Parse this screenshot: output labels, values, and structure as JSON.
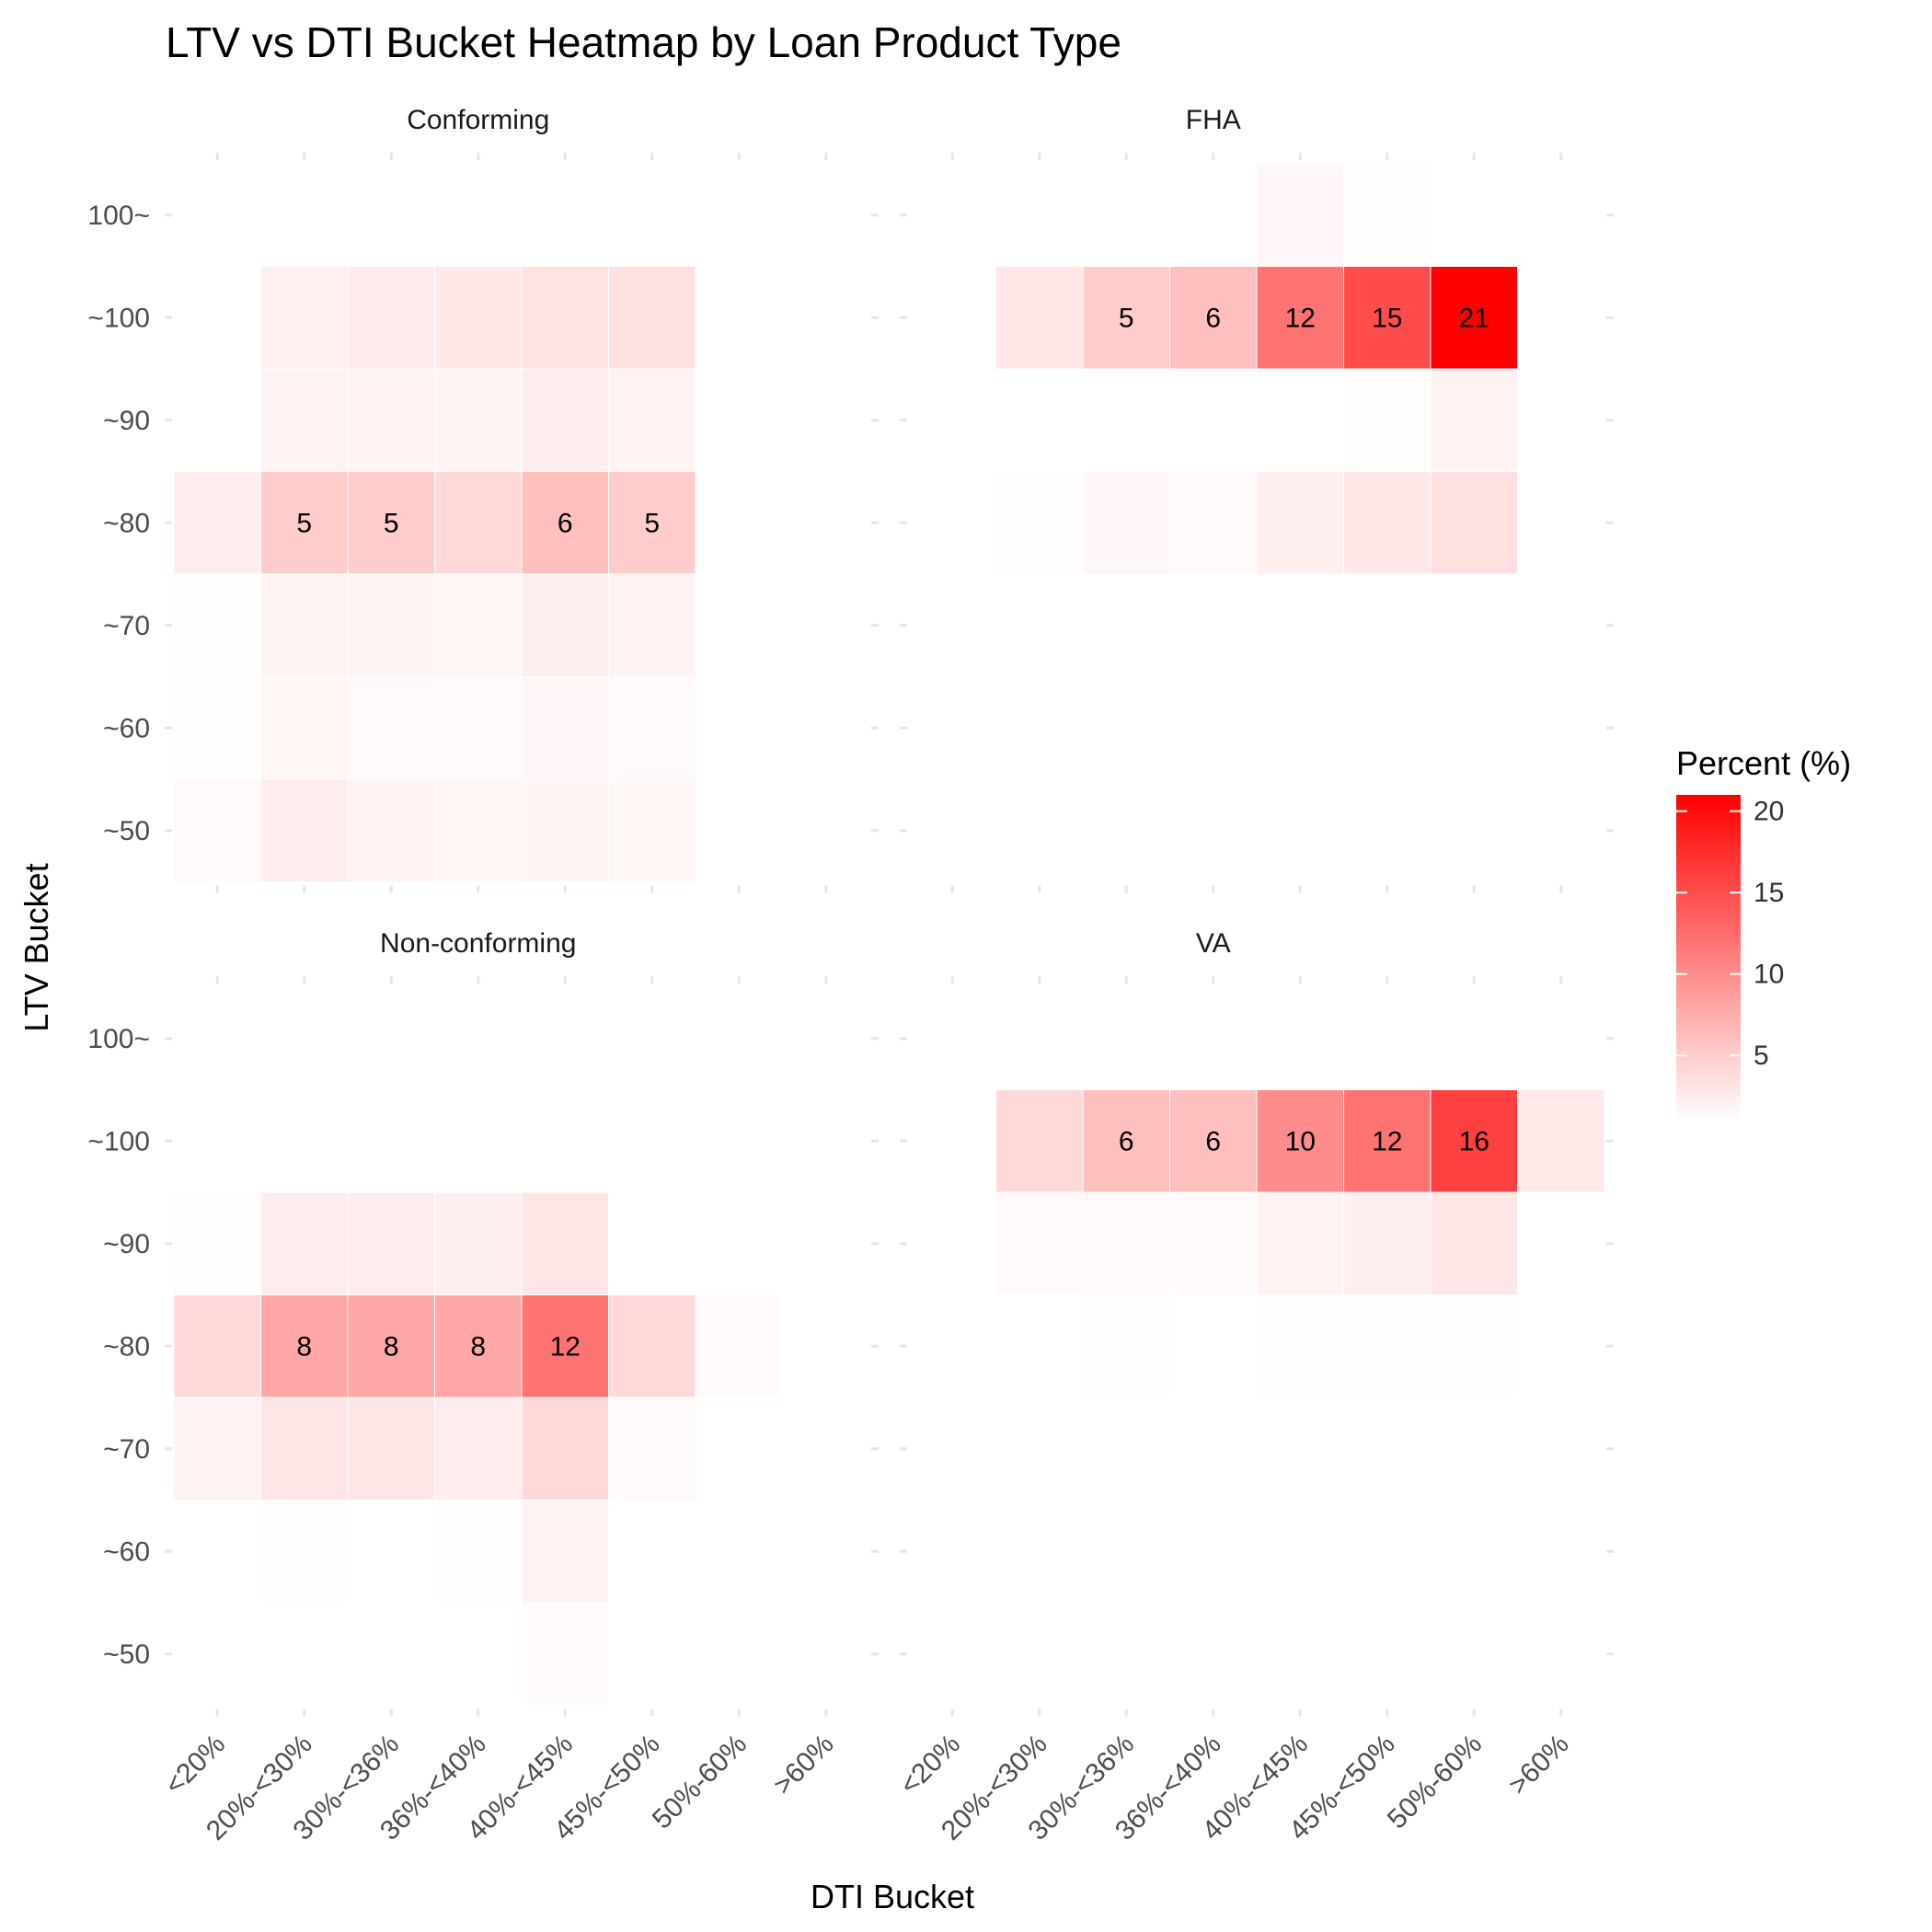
{
  "chart_data": {
    "type": "heatmap",
    "title": "LTV vs DTI Bucket Heatmap by Loan Product Type",
    "xlabel": "DTI Bucket",
    "ylabel": "LTV Bucket",
    "x_categories": [
      "<20%",
      "20%-<30%",
      "30%-<36%",
      "36%-<40%",
      "40%-<45%",
      "45%-<50%",
      "50%-60%",
      ">60%"
    ],
    "y_categories": [
      "~50",
      "~60",
      "~70",
      "~80",
      "~90",
      "~100",
      "100~"
    ],
    "legend": {
      "title": "Percent (%)",
      "ticks": [
        5,
        10,
        15,
        20
      ],
      "min": 1,
      "max": 21,
      "low_color": "#FFFFFF",
      "high_color": "#FF0000",
      "position": "right"
    },
    "grid": true,
    "label_threshold": 5,
    "facets": [
      {
        "name": "Conforming",
        "values": [
          [
            1.5,
            2.5,
            2.0,
            1.7,
            1.8,
            1.7,
            0.7,
            null
          ],
          [
            1.2,
            1.7,
            1.5,
            1.4,
            1.6,
            1.5,
            0.5,
            null
          ],
          [
            1.2,
            1.9,
            1.9,
            1.7,
            2.3,
            2.0,
            0.5,
            null
          ],
          [
            2.5,
            5.0,
            5.0,
            4.0,
            6.0,
            5.0,
            1.0,
            null
          ],
          [
            0.8,
            2.0,
            2.0,
            1.8,
            2.5,
            2.0,
            0.5,
            null
          ],
          [
            0.6,
            2.2,
            2.6,
            2.8,
            3.2,
            3.4,
            0.5,
            null
          ],
          [
            null,
            0.3,
            0.3,
            0.3,
            0.4,
            0.4,
            0.2,
            null
          ]
        ]
      },
      {
        "name": "FHA",
        "values": [
          [
            null,
            0.3,
            0.3,
            0.3,
            0.3,
            0.3,
            0.5,
            null
          ],
          [
            null,
            0.3,
            0.3,
            0.3,
            0.3,
            0.5,
            0.7,
            null
          ],
          [
            null,
            0.6,
            0.6,
            0.6,
            0.8,
            0.8,
            0.8,
            null
          ],
          [
            null,
            1.2,
            1.6,
            1.5,
            2.3,
            2.8,
            3.5,
            null
          ],
          [
            null,
            0.5,
            0.6,
            0.6,
            0.8,
            1.2,
            2.0,
            null
          ],
          [
            0.3,
            3.0,
            5.0,
            6.0,
            12.0,
            15.0,
            21.0,
            null
          ],
          [
            null,
            0.4,
            0.6,
            0.8,
            1.6,
            1.1,
            0.8,
            null
          ]
        ]
      },
      {
        "name": "Non-conforming",
        "values": [
          [
            1.0,
            0.9,
            0.9,
            1.0,
            1.3,
            0.6,
            0.4,
            null
          ],
          [
            1.0,
            1.2,
            1.0,
            1.1,
            2.0,
            0.8,
            0.5,
            null
          ],
          [
            2.0,
            3.0,
            3.0,
            2.5,
            4.0,
            1.5,
            1.0,
            null
          ],
          [
            4.0,
            8.0,
            8.0,
            8.0,
            12.0,
            4.0,
            1.3,
            0.4
          ],
          [
            1.2,
            2.5,
            2.5,
            2.3,
            3.0,
            1.0,
            0.3,
            null
          ],
          [
            0.5,
            0.8,
            0.8,
            0.8,
            0.9,
            0.5,
            null,
            null
          ],
          [
            null,
            null,
            null,
            null,
            null,
            null,
            null,
            null
          ]
        ]
      },
      {
        "name": "VA",
        "values": [
          [
            0.3,
            0.4,
            null,
            null,
            null,
            null,
            null,
            null
          ],
          [
            null,
            null,
            null,
            null,
            null,
            0.3,
            0.5,
            null
          ],
          [
            null,
            0.4,
            0.4,
            0.4,
            0.5,
            0.5,
            0.6,
            null
          ],
          [
            null,
            1.0,
            1.2,
            1.0,
            1.1,
            1.1,
            1.1,
            0.3
          ],
          [
            0.3,
            1.5,
            1.5,
            1.3,
            2.0,
            2.3,
            3.0,
            0.3
          ],
          [
            0.7,
            4.0,
            6.0,
            6.0,
            10.0,
            12.0,
            16.0,
            2.7
          ],
          [
            null,
            null,
            null,
            null,
            0.3,
            0.3,
            null,
            null
          ]
        ]
      }
    ]
  }
}
